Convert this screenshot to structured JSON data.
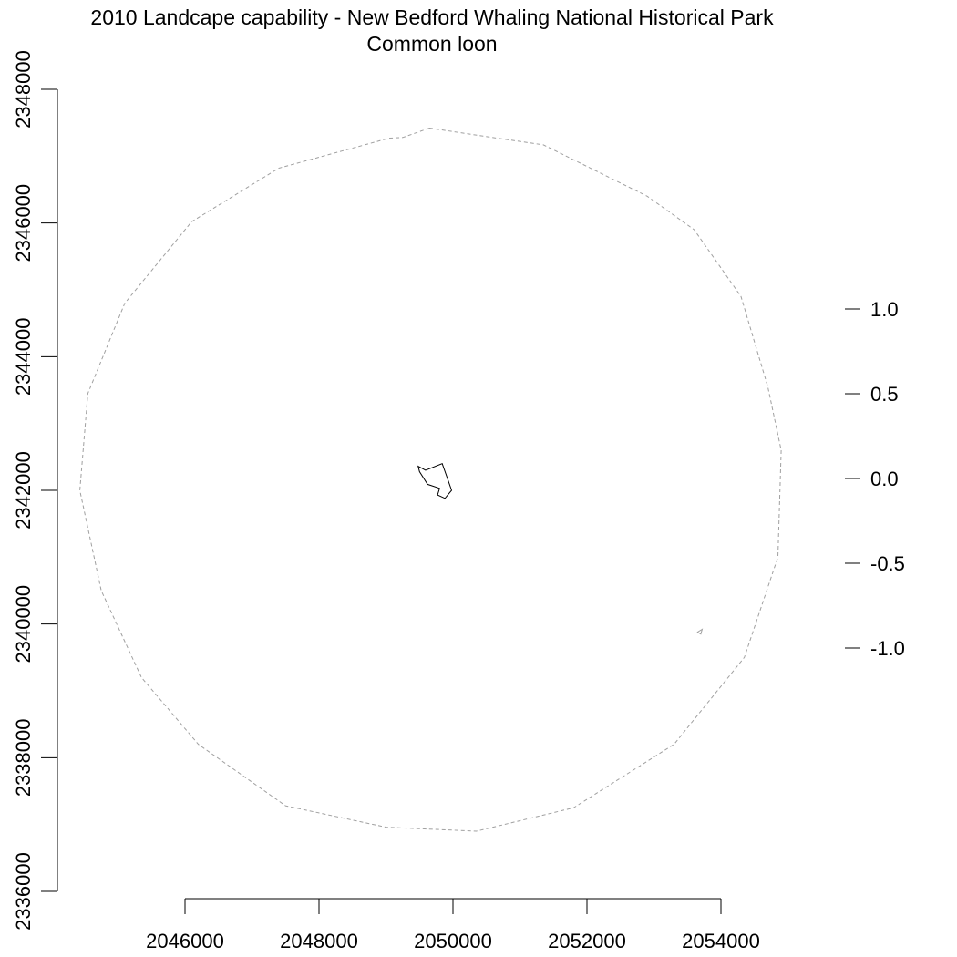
{
  "chart_data": {
    "type": "map",
    "title": "2010 Landcape capability - New Bedford Whaling National Historical Park",
    "subtitle": "Common loon",
    "x_ticks": [
      2046000,
      2048000,
      2050000,
      2052000,
      2054000
    ],
    "x_tick_labels": [
      "2046000",
      "2048000",
      "2050000",
      "2052000",
      "2054000"
    ],
    "y_ticks": [
      2336000,
      2338000,
      2340000,
      2342000,
      2344000,
      2346000,
      2348000
    ],
    "y_tick_labels": [
      "2336000",
      "2338000",
      "2340000",
      "2342000",
      "2344000",
      "2346000",
      "2348000"
    ],
    "legend_ticks": [
      1.0,
      0.5,
      0.0,
      -0.5,
      -1.0
    ],
    "legend_tick_labels": [
      "1.0",
      "0.5",
      "0.0",
      "-0.5",
      "-1.0"
    ],
    "legend_range": [
      -1.0,
      1.0
    ],
    "buffer_boundary": {
      "style": "dashed",
      "color": "#a0a0a0",
      "points": [
        [
          2049650,
          2347420
        ],
        [
          2049250,
          2347280
        ],
        [
          2049050,
          2347270
        ],
        [
          2047400,
          2346820
        ],
        [
          2046100,
          2346020
        ],
        [
          2045100,
          2344800
        ],
        [
          2044550,
          2343450
        ],
        [
          2044430,
          2342000
        ],
        [
          2044750,
          2340500
        ],
        [
          2045350,
          2339200
        ],
        [
          2046200,
          2338200
        ],
        [
          2047500,
          2337280
        ],
        [
          2049000,
          2336960
        ],
        [
          2050350,
          2336900
        ],
        [
          2051800,
          2337250
        ],
        [
          2053300,
          2338200
        ],
        [
          2054350,
          2339500
        ],
        [
          2054850,
          2341000
        ],
        [
          2054900,
          2342600
        ],
        [
          2054700,
          2343550
        ],
        [
          2054300,
          2344900
        ],
        [
          2053600,
          2345900
        ],
        [
          2052900,
          2346400
        ],
        [
          2051350,
          2347170
        ],
        [
          2050450,
          2347300
        ]
      ]
    },
    "park_boundary": {
      "style": "solid",
      "color": "#000000",
      "points": [
        [
          2049480,
          2342360
        ],
        [
          2049590,
          2342300
        ],
        [
          2049840,
          2342400
        ],
        [
          2049980,
          2342000
        ],
        [
          2049880,
          2341880
        ],
        [
          2049770,
          2341930
        ],
        [
          2049800,
          2342030
        ],
        [
          2049620,
          2342090
        ],
        [
          2049500,
          2342280
        ]
      ]
    },
    "small_feature": {
      "color": "#a0a0a0",
      "points": [
        [
          2053650,
          2339880
        ],
        [
          2053720,
          2339920
        ],
        [
          2053700,
          2339850
        ]
      ]
    }
  }
}
